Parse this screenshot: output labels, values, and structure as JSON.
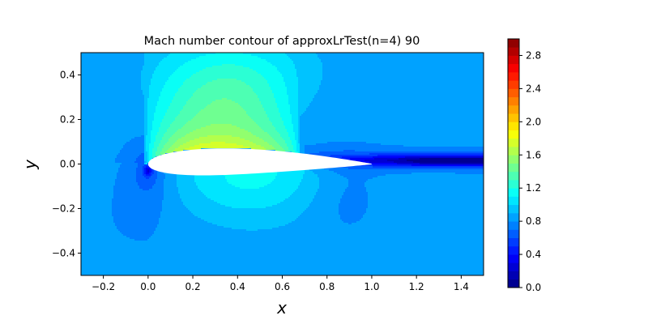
{
  "chart_data": [
    {
      "type": "heatmap",
      "title": "Mach number contour of approxLrTest(n=4) 90",
      "xlabel": "x",
      "ylabel": "y",
      "xlim": [
        -0.3,
        1.5
      ],
      "ylim": [
        -0.5,
        0.5
      ],
      "xticks": [
        -0.2,
        0.0,
        0.2,
        0.4,
        0.6,
        0.8,
        1.0,
        1.2,
        1.4
      ],
      "yticks": [
        -0.4,
        -0.2,
        0.0,
        0.2,
        0.4
      ],
      "xtick_labels": [
        "−0.2",
        "0.0",
        "0.2",
        "0.4",
        "0.6",
        "0.8",
        "1.0",
        "1.2",
        "1.4"
      ],
      "ytick_labels": [
        "−0.4",
        "−0.2",
        "0.0",
        "0.2",
        "0.4"
      ],
      "grid": false,
      "colormap": "jet",
      "freestream_mach": 0.85,
      "airfoil_chord": [
        0.0,
        1.0
      ],
      "airfoil_max_thickness_y": [
        -0.06,
        0.06
      ],
      "regions": [
        {
          "name": "supersonic pocket above airfoil",
          "x": [
            0.0,
            0.6
          ],
          "y": [
            0.0,
            0.4
          ],
          "mach_range": [
            1.2,
            2.1
          ]
        },
        {
          "name": "stagnation point at leading edge",
          "x": [
            0.0,
            0.0
          ],
          "y": [
            -0.03,
            -0.03
          ],
          "mach_range": [
            0.0,
            0.3
          ]
        },
        {
          "name": "wake",
          "x": [
            0.8,
            1.5
          ],
          "y": [
            -0.02,
            0.03
          ],
          "mach_range": [
            0.1,
            0.5
          ]
        },
        {
          "name": "lower surface",
          "x": [
            0.1,
            0.8
          ],
          "y": [
            -0.3,
            -0.06
          ],
          "mach_range": [
            1.0,
            1.15
          ]
        },
        {
          "name": "freestream",
          "x": [
            -0.3,
            1.5
          ],
          "y": [
            -0.5,
            0.5
          ],
          "mach_range": [
            0.8,
            0.9
          ]
        }
      ]
    },
    {
      "type": "colorbar",
      "vmin": 0.0,
      "vmax": 3.0,
      "levels": 30,
      "ticks": [
        0.0,
        0.4,
        0.8,
        1.2,
        1.6,
        2.0,
        2.4,
        2.8
      ],
      "tick_labels": [
        "0.0",
        "0.4",
        "0.8",
        "1.2",
        "1.6",
        "2.0",
        "2.4",
        "2.8"
      ]
    }
  ],
  "colors": {
    "background": "#ffffff",
    "airfoil": "#ffffff",
    "frame": "#000000"
  }
}
